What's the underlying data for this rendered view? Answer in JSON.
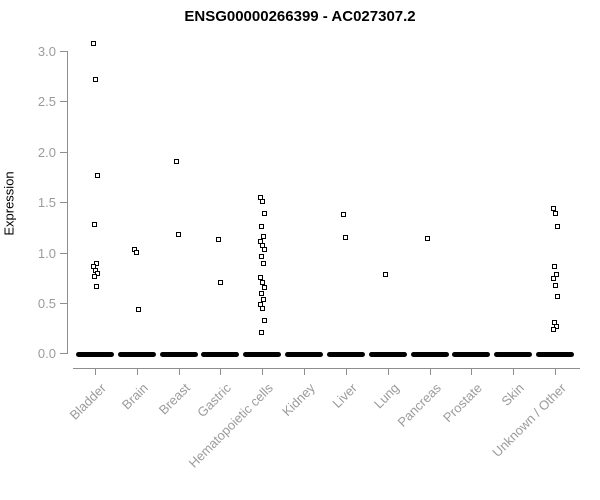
{
  "title": "ENSG00000266399 - AC027307.2",
  "chart_data": {
    "type": "scatter",
    "subtype": "strip-plot",
    "title": "ENSG00000266399 - AC027307.2",
    "xlabel": "",
    "ylabel": "Expression",
    "ylim": [
      0.0,
      3.0
    ],
    "yticks": [
      "0.0",
      "0.5",
      "1.0",
      "1.5",
      "2.0",
      "2.5",
      "3.0"
    ],
    "grid": false,
    "legend": "none",
    "point_color": "#000000",
    "axis_color": "#8e8e8e",
    "tick_label_color": "#9b9b9b",
    "title_color": "#000000",
    "marker": "open-square",
    "zero_bar_note": "thick black bar = many overlapping samples at expression 0",
    "categories": [
      {
        "label": "Bladder",
        "values": [
          3.07,
          2.72,
          1.76,
          1.28,
          0.89,
          0.86,
          0.82,
          0.79,
          0.76,
          0.66
        ],
        "zero_bar": true
      },
      {
        "label": "Brain",
        "values": [
          1.03,
          1.0,
          0.43
        ],
        "zero_bar": true
      },
      {
        "label": "Breast",
        "values": [
          1.9,
          1.18
        ],
        "zero_bar": true
      },
      {
        "label": "Gastric",
        "values": [
          1.13,
          0.7
        ],
        "zero_bar": true
      },
      {
        "label": "Hematopoietic cells",
        "values": [
          1.55,
          1.51,
          1.39,
          1.26,
          1.16,
          1.11,
          1.07,
          1.03,
          0.96,
          0.89,
          0.75,
          0.7,
          0.65,
          0.59,
          0.53,
          0.48,
          0.44,
          0.33,
          0.21
        ],
        "zero_bar": true
      },
      {
        "label": "Kidney",
        "values": [],
        "zero_bar": true
      },
      {
        "label": "Liver",
        "values": [
          1.38,
          1.15
        ],
        "zero_bar": true
      },
      {
        "label": "Lung",
        "values": [
          0.78
        ],
        "zero_bar": true
      },
      {
        "label": "Pancreas",
        "values": [
          1.14
        ],
        "zero_bar": true
      },
      {
        "label": "Prostate",
        "values": [],
        "zero_bar": true
      },
      {
        "label": "Skin",
        "values": [],
        "zero_bar": true
      },
      {
        "label": "Unknown / Other",
        "values": [
          1.44,
          1.39,
          1.26,
          0.86,
          0.78,
          0.74,
          0.67,
          0.56,
          0.31,
          0.27,
          0.24
        ],
        "zero_bar": true
      }
    ]
  }
}
